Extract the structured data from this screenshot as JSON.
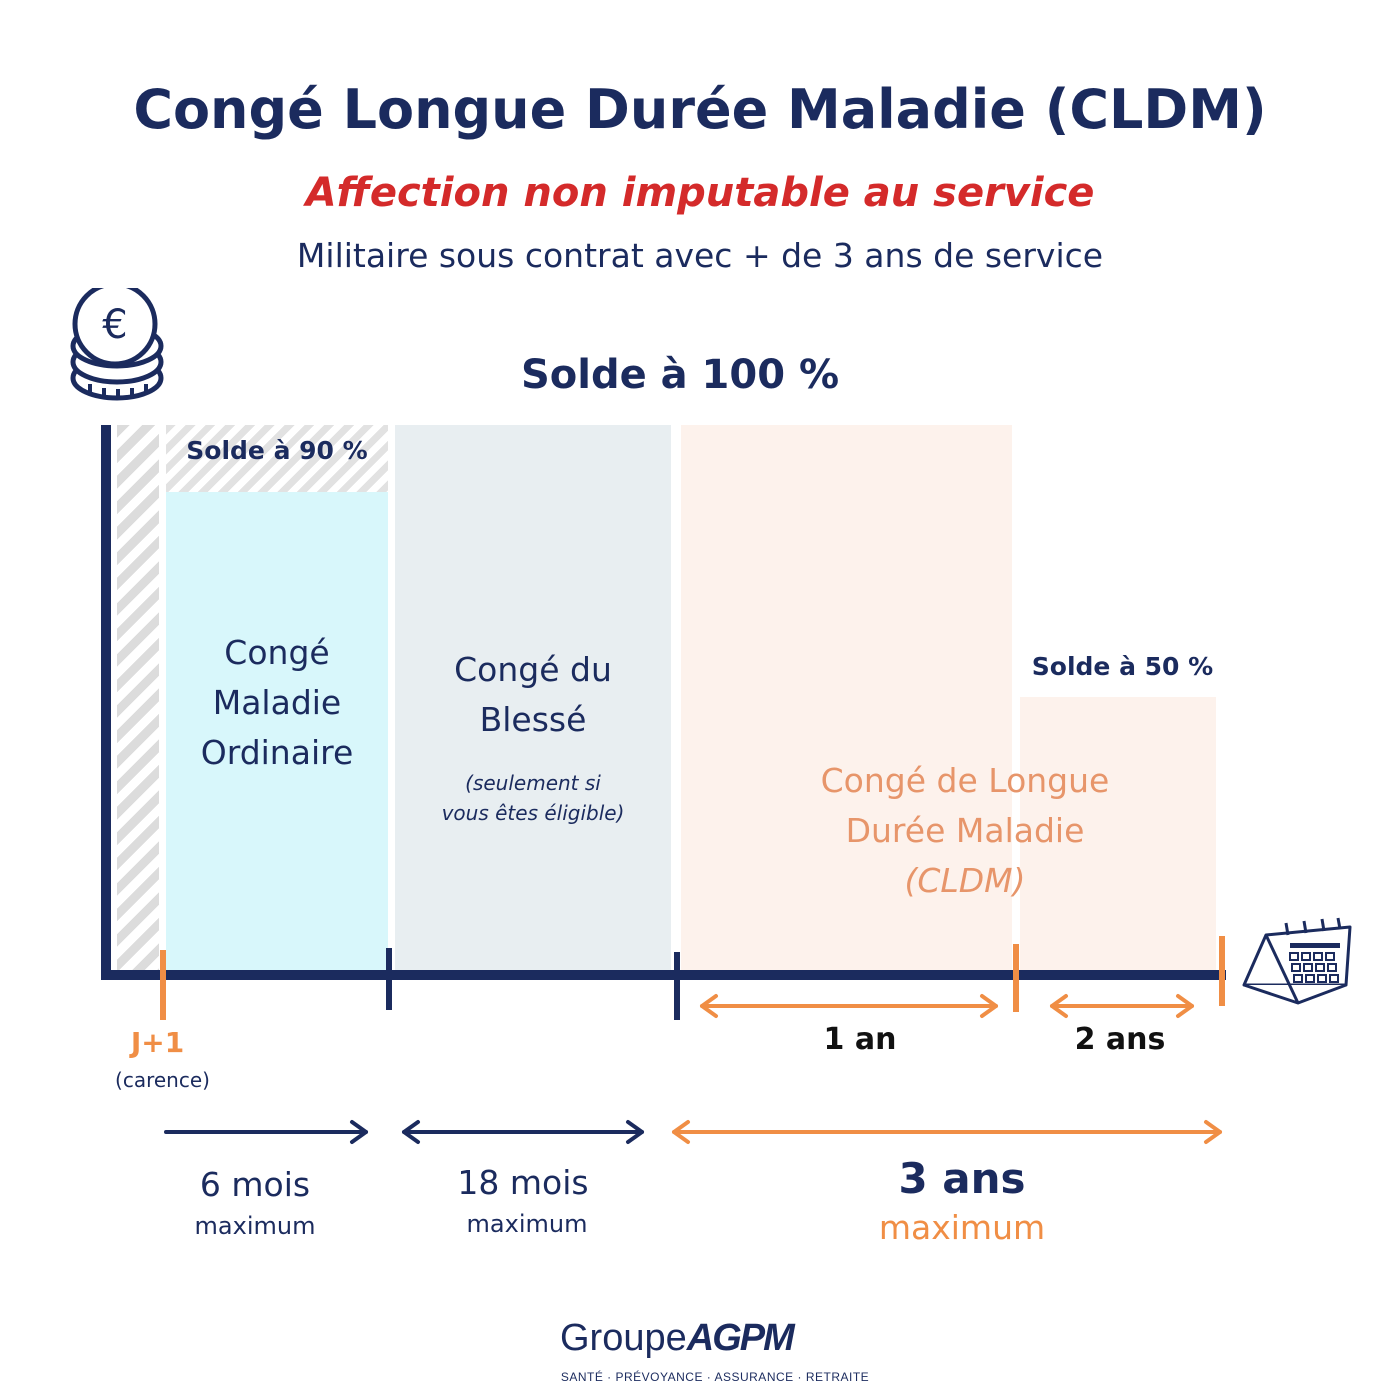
{
  "title": "Congé Longue Durée Maladie (CLDM)",
  "subtitle": "Affection non imputable au service",
  "subsubtitle": "Militaire sous contrat avec + de 3 ans de service",
  "solde_100": "Solde à 100 %",
  "solde_90": "Solde à 90 %",
  "solde_50": "Solde à 50 %",
  "blocks": {
    "cmo": {
      "line1": "Congé",
      "line2": "Maladie",
      "line3": "Ordinaire"
    },
    "cb": {
      "line1": "Congé du",
      "line2": "Blessé",
      "note1": "(seulement si",
      "note2": "vous êtes éligible)"
    },
    "cldm": {
      "line1": "Congé de Longue",
      "line2": "Durée Maladie",
      "line3": "(CLDM)"
    }
  },
  "timeline": {
    "j1": "J+1",
    "carence": "(carence)",
    "seg_1an": "1 an",
    "seg_2ans": "2  ans"
  },
  "durations": {
    "cmo": {
      "value": "6 mois",
      "max": "maximum"
    },
    "cb": {
      "value": "18 mois",
      "max": "maximum"
    },
    "cldm": {
      "value": "3 ans",
      "max": "maximum"
    }
  },
  "logo": {
    "groupe": "Groupe",
    "brand": "AGPM",
    "tagline": "SANTÉ · PRÉVOYANCE · ASSURANCE · RETRAITE"
  },
  "colors": {
    "navy": "#1b2b5e",
    "red": "#d42a2a",
    "orange": "#f08e45",
    "cyan": "#d8f7fb",
    "grey": "#e8eef1",
    "peach": "#fdf2ec"
  },
  "icons": [
    "euro-coins-icon",
    "calendar-icon"
  ]
}
